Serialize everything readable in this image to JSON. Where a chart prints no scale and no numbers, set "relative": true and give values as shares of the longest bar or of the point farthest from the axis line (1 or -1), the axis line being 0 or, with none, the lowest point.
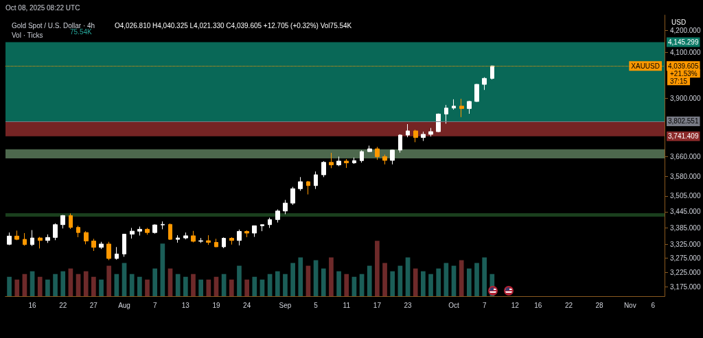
{
  "chart_data": [
    {
      "type": "candlestick",
      "title": "Gold Spot / U.S. Dollar · 4h",
      "subtitle": "O4,026.810 H4,040.325 L4,021.330 C4,039.605 +12.705 (+0.32%) Vol75.54K",
      "annotations": [
        "Oct 08, 2025 08:22 UTC",
        "USD",
        "XAUUSD",
        "+21.53%",
        "37:15"
      ],
      "categories": [
        null,
        null,
        null,
        "16",
        null,
        null,
        null,
        "22",
        null,
        null,
        null,
        "27",
        null,
        null,
        null,
        "Aug",
        null,
        null,
        null,
        "7",
        null,
        null,
        null,
        "13",
        null,
        null,
        null,
        "19",
        null,
        null,
        null,
        "24",
        null,
        null,
        null,
        null,
        "Sep",
        null,
        null,
        null,
        "5",
        null,
        null,
        null,
        "11",
        null,
        null,
        null,
        "17",
        null,
        null,
        null,
        "23",
        null,
        null,
        null,
        null,
        null,
        "Oct",
        null,
        null,
        null,
        "7",
        null,
        null,
        null,
        "12",
        null,
        null,
        "16",
        null,
        null,
        null,
        "22",
        null,
        null,
        null,
        "28",
        null,
        null,
        null,
        "Nov",
        null,
        null,
        "6",
        null
      ],
      "ohlc": [
        [
          3325,
          3368,
          3322,
          3355
        ],
        [
          3355,
          3375,
          3340,
          3343
        ],
        [
          3343,
          3366,
          3320,
          3324
        ],
        [
          3324,
          3377,
          3319,
          3348
        ],
        [
          3348,
          3352,
          3310,
          3339
        ],
        [
          3339,
          3361,
          3330,
          3350
        ],
        [
          3350,
          3402,
          3340,
          3397
        ],
        [
          3397,
          3433,
          3383,
          3431
        ],
        [
          3431,
          3439,
          3381,
          3387
        ],
        [
          3387,
          3393,
          3351,
          3368
        ],
        [
          3368,
          3373,
          3325,
          3337
        ],
        [
          3337,
          3345,
          3301,
          3314
        ],
        [
          3314,
          3334,
          3308,
          3326
        ],
        [
          3326,
          3334,
          3268,
          3274
        ],
        [
          3274,
          3315,
          3270,
          3290
        ],
        [
          3290,
          3363,
          3280,
          3362
        ],
        [
          3362,
          3385,
          3346,
          3373
        ],
        [
          3373,
          3390,
          3357,
          3380
        ],
        [
          3380,
          3385,
          3360,
          3368
        ],
        [
          3368,
          3398,
          3364,
          3396
        ],
        [
          3396,
          3409,
          3380,
          3398
        ],
        [
          3398,
          3401,
          3341,
          3343
        ],
        [
          3343,
          3358,
          3331,
          3348
        ],
        [
          3348,
          3368,
          3343,
          3356
        ],
        [
          3356,
          3374,
          3332,
          3336
        ],
        [
          3336,
          3348,
          3330,
          3338
        ],
        [
          3338,
          3358,
          3323,
          3332
        ],
        [
          3332,
          3345,
          3315,
          3316
        ],
        [
          3316,
          3350,
          3311,
          3347
        ],
        [
          3347,
          3351,
          3324,
          3339
        ],
        [
          3339,
          3379,
          3321,
          3372
        ],
        [
          3372,
          3376,
          3351,
          3366
        ],
        [
          3366,
          3393,
          3352,
          3393
        ],
        [
          3393,
          3398,
          3373,
          3397
        ],
        [
          3397,
          3423,
          3385,
          3416
        ],
        [
          3416,
          3454,
          3405,
          3448
        ],
        [
          3448,
          3490,
          3436,
          3478
        ],
        [
          3478,
          3540,
          3471,
          3533
        ],
        [
          3533,
          3578,
          3525,
          3560
        ],
        [
          3560,
          3563,
          3511,
          3545
        ],
        [
          3545,
          3600,
          3532,
          3587
        ],
        [
          3587,
          3641,
          3578,
          3636
        ],
        [
          3636,
          3674,
          3613,
          3626
        ],
        [
          3626,
          3659,
          3621,
          3641
        ],
        [
          3641,
          3649,
          3614,
          3634
        ],
        [
          3634,
          3655,
          3630,
          3643
        ],
        [
          3643,
          3684,
          3635,
          3679
        ],
        [
          3679,
          3703,
          3677,
          3690
        ],
        [
          3690,
          3698,
          3646,
          3659
        ],
        [
          3659,
          3667,
          3628,
          3644
        ],
        [
          3644,
          3686,
          3628,
          3685
        ],
        [
          3685,
          3749,
          3675,
          3746
        ],
        [
          3746,
          3791,
          3737,
          3763
        ],
        [
          3763,
          3768,
          3717,
          3736
        ],
        [
          3736,
          3760,
          3722,
          3749
        ],
        [
          3749,
          3775,
          3740,
          3760
        ],
        [
          3760,
          3835,
          3758,
          3833
        ],
        [
          3833,
          3871,
          3793,
          3858
        ],
        [
          3858,
          3895,
          3851,
          3866
        ],
        [
          3866,
          3897,
          3820,
          3856
        ],
        [
          3856,
          3889,
          3834,
          3886
        ],
        [
          3886,
          3961,
          3884,
          3959
        ],
        [
          3959,
          3990,
          3935,
          3985
        ],
        [
          3985,
          4040.325,
          3980,
          4039.605
        ],
        null,
        null,
        null,
        null,
        null,
        null,
        null,
        null,
        null,
        null,
        null,
        null,
        null,
        null,
        null,
        null,
        null,
        null,
        null,
        null,
        null,
        null
      ],
      "colors": [
        "#ffffff",
        "#ff9800",
        "#ff9800",
        "#ffffff",
        "#ff9800",
        "#ffffff",
        "#ffffff",
        "#ffffff",
        "#ff9800",
        "#ff9800",
        "#ff9800",
        "#ff9800",
        "#ffffff",
        "#ff9800",
        "#ffffff",
        "#ffffff",
        "#ffffff",
        "#ffffff",
        "#ff9800",
        "#ffffff",
        "#ffffff",
        "#ff9800",
        "#ffffff",
        "#ffffff",
        "#ff9800",
        "#ffffff",
        "#ff9800",
        "#ff9800",
        "#ffffff",
        "#ff9800",
        "#ffffff",
        "#ff9800",
        "#ffffff",
        "#ffffff",
        "#ffffff",
        "#ffffff",
        "#ffffff",
        "#ffffff",
        "#ffffff",
        "#ff9800",
        "#ffffff",
        "#ffffff",
        "#ff9800",
        "#ffffff",
        "#ff9800",
        "#ffffff",
        "#ffffff",
        "#ffffff",
        "#ff9800",
        "#ff9800",
        "#ffffff",
        "#ffffff",
        "#ffffff",
        "#ff9800",
        "#ffffff",
        "#ffffff",
        "#ffffff",
        "#ffffff",
        "#ffffff",
        "#ff9800",
        "#ffffff",
        "#ffffff",
        "#ffffff",
        "#ffffff",
        null,
        null,
        null,
        null,
        null,
        null,
        null,
        null,
        null,
        null,
        null,
        null,
        null,
        null,
        null,
        null,
        null,
        null,
        null,
        null,
        null,
        null
      ],
      "log": "y",
      "ylim": [
        3142,
        4270
      ],
      "yticks": [
        {
          "value": 3175,
          "label": "3,175.000"
        },
        {
          "value": 3225,
          "label": "3,225.000"
        },
        {
          "value": 3275,
          "label": "3,275.000"
        },
        {
          "value": 3325,
          "label": "3,325.000"
        },
        {
          "value": 3385,
          "label": "3,385.000"
        },
        {
          "value": 3445,
          "label": "3,445.000"
        },
        {
          "value": 3505,
          "label": "3,505.000"
        },
        {
          "value": 3580,
          "label": "3,580.000"
        },
        {
          "value": 3660,
          "label": "3,660.000"
        },
        {
          "value": 3900,
          "label": "3,900.000"
        },
        {
          "value": 4100,
          "label": "4,100.000"
        },
        {
          "value": 4200,
          "label": "4,200.000"
        }
      ],
      "ref_lines": [
        {
          "axis": "y",
          "value": 4039.605,
          "label": "4,039.605",
          "color": "#ff9800",
          "line_style": "dotted"
        },
        {
          "axis": "y",
          "value": 3802.551,
          "label": "3,802.551",
          "color": "#787b86",
          "line_style": "solid"
        }
      ],
      "bands": [
        {
          "axis": "y",
          "from": 4145.299,
          "to": 3802.551,
          "label": "4,145.299",
          "color": "#0b7a66"
        },
        {
          "axis": "y",
          "from": 3741.409,
          "to": 3802.551,
          "label": "3,741.409",
          "color": "#8a2a2a"
        },
        {
          "axis": "y",
          "from": 3652,
          "to": 3688,
          "label": null,
          "color": "#5a7a5a"
        },
        {
          "axis": "y",
          "from": 3427,
          "to": 3440,
          "label": null,
          "color": "#1f4a22"
        }
      ],
      "grid": false
    },
    {
      "type": "bar",
      "title": "Vol · Ticks",
      "annotations": [
        "75.54K"
      ],
      "relative": true,
      "categories": [
        null,
        null,
        null,
        null,
        null,
        null,
        null,
        null,
        null,
        null,
        null,
        null,
        null,
        null,
        null,
        null,
        null,
        null,
        null,
        null,
        null,
        null,
        null,
        null,
        null,
        null,
        null,
        null,
        null,
        null,
        null,
        null,
        null,
        null,
        null,
        null,
        null,
        null,
        null,
        null,
        null,
        null,
        null,
        null,
        null,
        null,
        null,
        null,
        null,
        null,
        null,
        null,
        null,
        null,
        null,
        null,
        null,
        null,
        null,
        null,
        null,
        null,
        null,
        null,
        null,
        null,
        null,
        null,
        null,
        null,
        null,
        null,
        null,
        null,
        null,
        null,
        null,
        null,
        null,
        null,
        null,
        null,
        null,
        null,
        null,
        null
      ],
      "values": [
        0.35,
        0.3,
        0.4,
        0.45,
        0.35,
        0.3,
        0.4,
        0.45,
        0.5,
        0.4,
        0.45,
        0.35,
        0.3,
        0.55,
        0.4,
        0.6,
        0.4,
        0.35,
        0.3,
        0.5,
        0.95,
        0.5,
        0.4,
        0.35,
        0.4,
        0.3,
        0.3,
        0.35,
        0.4,
        0.3,
        0.55,
        0.3,
        0.35,
        0.3,
        0.4,
        0.45,
        0.4,
        0.6,
        0.7,
        0.55,
        0.65,
        0.5,
        0.7,
        0.45,
        0.4,
        0.35,
        0.4,
        0.55,
        1,
        0.6,
        0.45,
        0.55,
        0.7,
        0.5,
        0.45,
        0.4,
        0.5,
        0.6,
        0.55,
        0.65,
        0.5,
        0.6,
        0.7,
        0.4,
        null,
        null,
        null,
        null,
        null,
        null,
        null,
        null,
        null,
        null,
        null,
        null,
        null,
        null,
        null,
        null,
        null,
        null,
        null,
        null,
        null,
        null
      ],
      "colors": [
        "#1b5e58",
        "#6e2a2a",
        "#6e2a2a",
        "#1b5e58",
        "#6e2a2a",
        "#1b5e58",
        "#1b5e58",
        "#1b5e58",
        "#6e2a2a",
        "#6e2a2a",
        "#6e2a2a",
        "#6e2a2a",
        "#1b5e58",
        "#6e2a2a",
        "#1b5e58",
        "#1b5e58",
        "#1b5e58",
        "#1b5e58",
        "#6e2a2a",
        "#1b5e58",
        "#1b5e58",
        "#6e2a2a",
        "#1b5e58",
        "#1b5e58",
        "#6e2a2a",
        "#1b5e58",
        "#6e2a2a",
        "#6e2a2a",
        "#1b5e58",
        "#6e2a2a",
        "#1b5e58",
        "#6e2a2a",
        "#1b5e58",
        "#1b5e58",
        "#1b5e58",
        "#1b5e58",
        "#1b5e58",
        "#1b5e58",
        "#1b5e58",
        "#6e2a2a",
        "#1b5e58",
        "#1b5e58",
        "#6e2a2a",
        "#1b5e58",
        "#6e2a2a",
        "#1b5e58",
        "#1b5e58",
        "#1b5e58",
        "#6e2a2a",
        "#6e2a2a",
        "#1b5e58",
        "#1b5e58",
        "#1b5e58",
        "#6e2a2a",
        "#1b5e58",
        "#1b5e58",
        "#1b5e58",
        "#1b5e58",
        "#1b5e58",
        "#6e2a2a",
        "#1b5e58",
        "#1b5e58",
        "#1b5e58",
        "#1b5e58",
        null,
        null,
        null,
        null,
        null,
        null,
        null,
        null,
        null,
        null,
        null,
        null,
        null,
        null,
        null,
        null,
        null,
        null,
        null,
        null,
        null,
        null
      ],
      "grid": false
    }
  ]
}
